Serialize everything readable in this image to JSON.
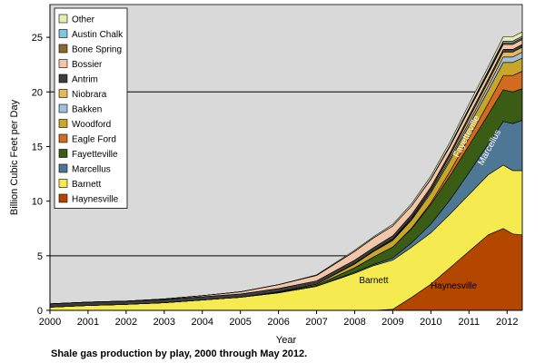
{
  "caption": "Shale gas production by play, 2000 through May 2012.",
  "colors": {
    "plot_bg": "#d9d9d9",
    "grid": "#000000"
  },
  "chart_data": {
    "type": "area",
    "stacked": true,
    "xlabel": "Year",
    "ylabel": "Billion Cubic Feet per Day",
    "xlim": [
      2000,
      2012.4
    ],
    "ylim": [
      0,
      28
    ],
    "yticks": [
      0,
      5,
      10,
      15,
      20,
      25
    ],
    "xticks": [
      "2000",
      "2001",
      "2002",
      "2003",
      "2004",
      "2005",
      "2006",
      "2007",
      "2008",
      "2009",
      "2010",
      "2011",
      "2012"
    ],
    "grid_y": [
      5,
      20
    ],
    "legend_placement": "top-left",
    "x": [
      2000,
      2001,
      2002,
      2003,
      2004,
      2005,
      2006,
      2007,
      2008,
      2008.5,
      2009,
      2009.5,
      2010,
      2010.5,
      2011,
      2011.5,
      2011.9,
      2012.15,
      2012.4
    ],
    "series": [
      {
        "name": "Haynesville",
        "color": "#b34700",
        "values": [
          0,
          0,
          0,
          0,
          0,
          0,
          0,
          0,
          0,
          0,
          0.1,
          1.2,
          2.4,
          3.9,
          5.4,
          6.9,
          7.5,
          7.0,
          6.9
        ]
      },
      {
        "name": "Barnett",
        "color": "#f5ea4f",
        "values": [
          0.3,
          0.45,
          0.55,
          0.7,
          0.95,
          1.2,
          1.6,
          2.2,
          3.4,
          4.1,
          4.5,
          4.6,
          4.7,
          4.9,
          5.2,
          5.5,
          5.8,
          5.8,
          5.9
        ]
      },
      {
        "name": "Marcellus",
        "color": "#4e7796",
        "values": [
          0,
          0,
          0,
          0,
          0,
          0,
          0,
          0,
          0.1,
          0.1,
          0.2,
          0.4,
          0.8,
          1.3,
          2.0,
          2.8,
          4.0,
          4.3,
          4.6
        ]
      },
      {
        "name": "Fayetteville",
        "color": "#3a5c14",
        "values": [
          0,
          0,
          0,
          0,
          0,
          0,
          0.05,
          0.1,
          0.4,
          0.7,
          1.0,
          1.3,
          1.8,
          2.2,
          2.5,
          2.7,
          2.9,
          2.9,
          2.9
        ]
      },
      {
        "name": "Eagle Ford",
        "color": "#d26a1f",
        "values": [
          0,
          0,
          0,
          0,
          0,
          0,
          0,
          0,
          0,
          0,
          0,
          0.05,
          0.15,
          0.4,
          0.7,
          1.0,
          1.3,
          1.5,
          1.6
        ]
      },
      {
        "name": "Woodford",
        "color": "#c7a62a",
        "values": [
          0,
          0,
          0,
          0,
          0,
          0,
          0.05,
          0.1,
          0.35,
          0.5,
          0.6,
          0.75,
          0.9,
          1.0,
          1.1,
          1.2,
          1.2,
          1.2,
          1.2
        ]
      },
      {
        "name": "Bakken",
        "color": "#9fc0d8",
        "values": [
          0,
          0,
          0,
          0,
          0,
          0,
          0,
          0,
          0.05,
          0.05,
          0.08,
          0.1,
          0.15,
          0.2,
          0.3,
          0.4,
          0.5,
          0.5,
          0.55
        ]
      },
      {
        "name": "Niobrara",
        "color": "#e7b85a",
        "values": [
          0,
          0,
          0,
          0,
          0,
          0,
          0,
          0,
          0,
          0,
          0.05,
          0.1,
          0.15,
          0.25,
          0.35,
          0.4,
          0.45,
          0.45,
          0.45
        ]
      },
      {
        "name": "Antrim",
        "color": "#3d3d3d",
        "values": [
          0.3,
          0.3,
          0.3,
          0.3,
          0.3,
          0.3,
          0.3,
          0.3,
          0.3,
          0.3,
          0.3,
          0.3,
          0.25,
          0.25,
          0.25,
          0.25,
          0.25,
          0.25,
          0.25
        ]
      },
      {
        "name": "Bossier",
        "color": "#f2c6a8",
        "values": [
          0,
          0,
          0,
          0.05,
          0.1,
          0.2,
          0.35,
          0.5,
          0.8,
          0.9,
          0.9,
          0.8,
          0.7,
          0.6,
          0.55,
          0.5,
          0.45,
          0.45,
          0.45
        ]
      },
      {
        "name": "Bone Spring",
        "color": "#8a6a30",
        "values": [
          0,
          0,
          0,
          0,
          0,
          0,
          0,
          0,
          0,
          0,
          0,
          0,
          0.02,
          0.05,
          0.08,
          0.12,
          0.15,
          0.15,
          0.15
        ]
      },
      {
        "name": "Austin Chalk",
        "color": "#7fc6e0",
        "values": [
          0,
          0,
          0,
          0,
          0,
          0,
          0,
          0,
          0,
          0,
          0,
          0,
          0.02,
          0.05,
          0.1,
          0.15,
          0.15,
          0.15,
          0.15
        ]
      },
      {
        "name": "Other",
        "color": "#e9ecb3",
        "values": [
          0,
          0,
          0,
          0,
          0,
          0,
          0,
          0.05,
          0.1,
          0.1,
          0.15,
          0.2,
          0.25,
          0.3,
          0.35,
          0.35,
          0.4,
          0.4,
          0.4
        ]
      }
    ],
    "annotations": [
      {
        "text": "Barnett",
        "x": 2008.5,
        "y": 2.5,
        "rotate": 0,
        "color": "#000000"
      },
      {
        "text": "Haynesville",
        "x": 2010.6,
        "y": 2.0,
        "rotate": 0,
        "color": "#000000"
      },
      {
        "text": "Marcellus",
        "x": 2011.6,
        "y": 14.8,
        "rotate": -62,
        "color": "#ffffff"
      },
      {
        "text": "Fayetteville",
        "x": 2011.0,
        "y": 15.8,
        "rotate": -62,
        "color": "#ffffff"
      }
    ]
  }
}
